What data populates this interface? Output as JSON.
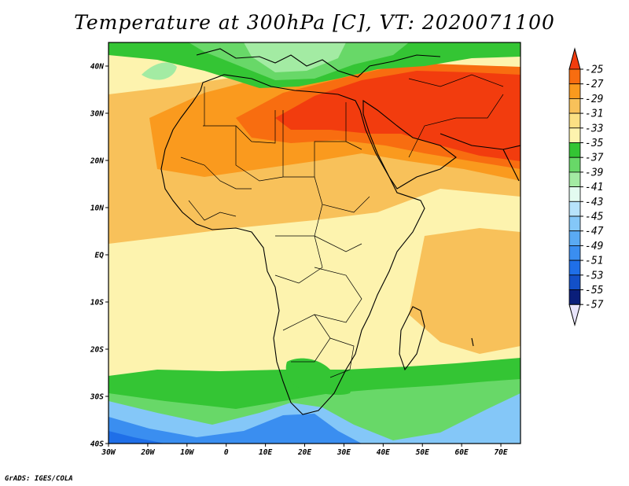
{
  "title": "Temperature at 300hPa [C], VT: 2020071100",
  "credit": "GrADS: IGES/COLA",
  "lat_labels": [
    "40N",
    "30N",
    "20N",
    "10N",
    "EQ",
    "10S",
    "20S",
    "30S",
    "40S"
  ],
  "lon_labels": [
    "30W",
    "20W",
    "10W",
    "0",
    "10E",
    "20E",
    "30E",
    "40E",
    "50E",
    "60E",
    "70E"
  ],
  "extent": {
    "lon": [
      -30,
      75
    ],
    "lat": [
      -40,
      45
    ]
  },
  "colorbar": {
    "labels": [
      "-25",
      "-27",
      "-29",
      "-31",
      "-33",
      "-35",
      "-37",
      "-39",
      "-41",
      "-43",
      "-45",
      "-47",
      "-49",
      "-51",
      "-53",
      "-55",
      "-57"
    ],
    "colors": [
      "#f23c0e",
      "#f86d10",
      "#fa9a1e",
      "#f8c15a",
      "#fbe084",
      "#fdf3ae",
      "#34c534",
      "#68d868",
      "#a3eba3",
      "#e3fbf0",
      "#b7e3fb",
      "#84c7f8",
      "#5aaaf3",
      "#3a8ef0",
      "#1f6fe8",
      "#1350c8",
      "#0a1e7a"
    ],
    "over_color": "#f23c0e",
    "under_color": "#e8e4fb"
  },
  "layers": [
    {
      "name": "base-yellow",
      "color": "#fdf3ae"
    },
    {
      "name": "light-orange",
      "color": "#f8c15a"
    },
    {
      "name": "orange",
      "color": "#fa9a1e"
    },
    {
      "name": "dark-orange",
      "color": "#f86d10"
    },
    {
      "name": "red",
      "color": "#f23c0e"
    },
    {
      "name": "green",
      "color": "#34c534"
    },
    {
      "name": "light-green",
      "color": "#68d868"
    },
    {
      "name": "pale-green",
      "color": "#a3eba3"
    },
    {
      "name": "light-blue",
      "color": "#84c7f8"
    },
    {
      "name": "blue",
      "color": "#3a8ef0"
    },
    {
      "name": "deep-blue",
      "color": "#1f6fe8"
    }
  ]
}
